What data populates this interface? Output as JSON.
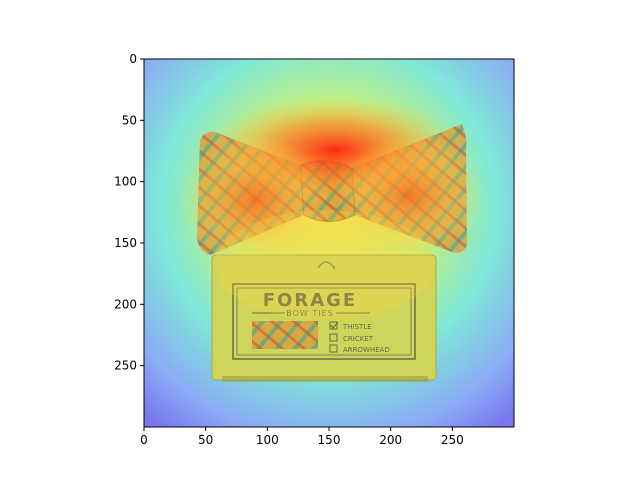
{
  "chart_data": {
    "type": "heatmap",
    "title": "",
    "xlabel": "",
    "ylabel": "",
    "xlim": [
      0,
      300
    ],
    "ylim": [
      300,
      0
    ],
    "xticks": [
      0,
      50,
      100,
      150,
      200,
      250
    ],
    "yticks": [
      0,
      50,
      100,
      150,
      200,
      250
    ],
    "xtick_labels": [
      "0",
      "50",
      "100",
      "150",
      "200",
      "250"
    ],
    "ytick_labels": [
      "0",
      "50",
      "100",
      "150",
      "200",
      "250"
    ],
    "y_inverted": true,
    "grid": false,
    "legend": "none",
    "colormap": "jet",
    "overlay_alpha": 0.5,
    "image_subject": "bow-tie on gift box",
    "hotspots": [
      {
        "x": 155,
        "y": 75,
        "intensity": 1.0
      },
      {
        "x": 215,
        "y": 105,
        "intensity": 0.9
      },
      {
        "x": 90,
        "y": 110,
        "intensity": 0.9
      },
      {
        "x": 150,
        "y": 170,
        "intensity": 0.7
      },
      {
        "x": 155,
        "y": 225,
        "intensity": 0.4
      }
    ]
  },
  "package": {
    "brand": "FORAGE",
    "subtitle": "BOW TIES",
    "options": [
      {
        "label": "THISTLE",
        "checked": true
      },
      {
        "label": "CRICKET",
        "checked": false
      },
      {
        "label": "ARROWHEAD",
        "checked": false
      }
    ]
  },
  "colors": {
    "heat_red": "#ff2a1a",
    "heat_yellow": "#ffe83a",
    "heat_cyan": "#7fe8d8",
    "heat_blue": "#7b7bf5",
    "axis": "#000000"
  }
}
